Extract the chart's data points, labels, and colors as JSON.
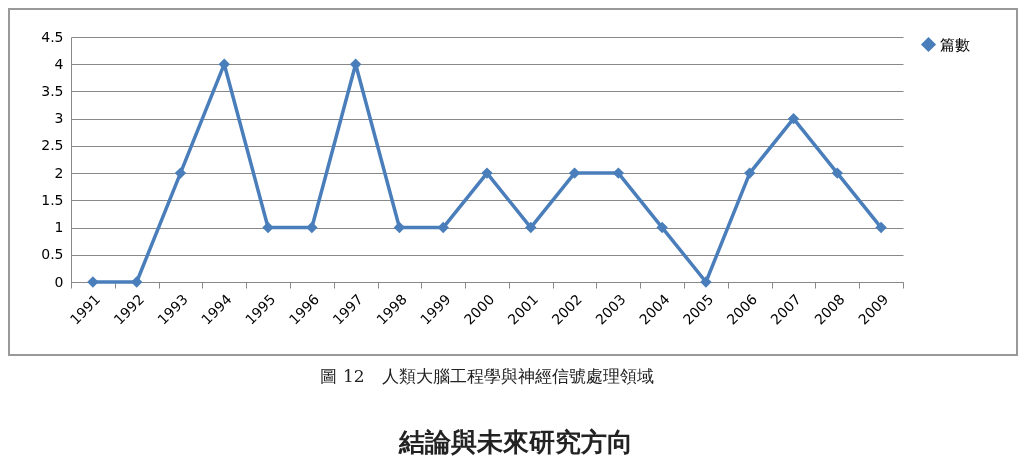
{
  "chart_data": {
    "type": "line",
    "title": "圖 12　人類大腦工程學與神經信號處理領域",
    "annotations": [
      "結論與未來研究方向"
    ],
    "categories": [
      "1991",
      "1992",
      "1993",
      "1994",
      "1995",
      "1996",
      "1997",
      "1998",
      "1999",
      "2000",
      "2001",
      "2002",
      "2003",
      "2004",
      "2005",
      "2006",
      "2007",
      "2008",
      "2009"
    ],
    "series": [
      {
        "name": "篇數",
        "color": "#4a7ebb",
        "values": [
          0,
          0,
          2,
          4,
          1,
          1,
          4,
          1,
          1,
          2,
          1,
          2,
          2,
          1,
          0,
          2,
          3,
          2,
          1
        ]
      }
    ],
    "ylim": [
      0,
      4.5
    ],
    "yticks": [
      0,
      0.5,
      1,
      1.5,
      2,
      2.5,
      3,
      3.5,
      4,
      4.5
    ],
    "grid": "y",
    "legend": "right",
    "marker": "diamond",
    "line_style": "solid"
  }
}
